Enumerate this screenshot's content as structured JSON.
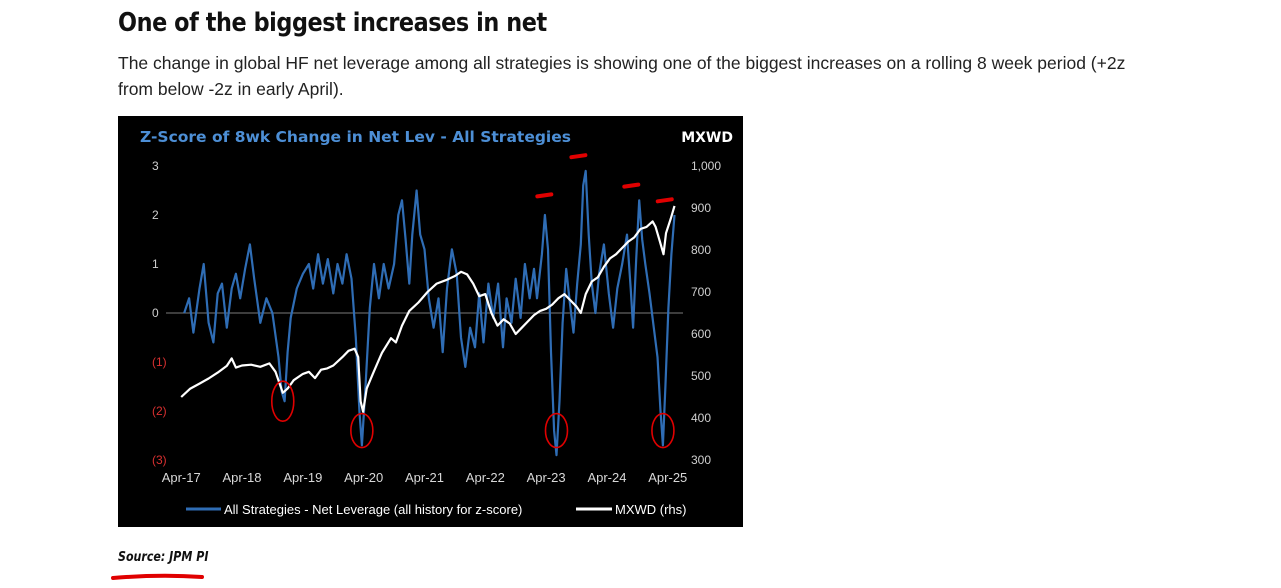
{
  "article": {
    "headline": "One of the biggest increases in net",
    "deck": "The change in global HF net leverage among all strategies is showing one of the biggest increases on a rolling 8 week period (+2z from below -2z in early April).",
    "source": "Source: JPM PI"
  },
  "colors": {
    "title_blue": "#4d8fd6",
    "zscore_series": "#2f6db5",
    "mxwd_series": "#ffffff",
    "annotation_red": "#e00000",
    "background": "#000000"
  },
  "chart_data": {
    "type": "line",
    "title": "Z-Score of 8wk Change in Net Lev - All Strategies",
    "right_axis_title": "MXWD",
    "left_axis": {
      "range": [
        -3,
        3
      ],
      "ticks": [
        "3",
        "2",
        "1",
        "0",
        "(1)",
        "(2)",
        "(3)"
      ],
      "tick_values": [
        3,
        2,
        1,
        0,
        -1,
        -2,
        -3
      ]
    },
    "right_axis": {
      "range": [
        300,
        1000
      ],
      "ticks": [
        "1,000",
        "900",
        "800",
        "700",
        "600",
        "500",
        "400",
        "300"
      ],
      "tick_values": [
        1000,
        900,
        800,
        700,
        600,
        500,
        400,
        300
      ]
    },
    "x_axis": {
      "range": [
        2017.0,
        2025.5
      ],
      "ticks": [
        "Apr-17",
        "Apr-18",
        "Apr-19",
        "Apr-20",
        "Apr-21",
        "Apr-22",
        "Apr-23",
        "Apr-24",
        "Apr-25"
      ],
      "tick_values": [
        2017.25,
        2018.25,
        2019.25,
        2020.25,
        2021.25,
        2022.25,
        2023.25,
        2024.25,
        2025.25
      ]
    },
    "series": [
      {
        "name": "All Strategies - Net Leverage (all history for z-score)",
        "axis": "left",
        "points": [
          [
            2017.3,
            0.0
          ],
          [
            2017.38,
            0.3
          ],
          [
            2017.45,
            -0.4
          ],
          [
            2017.55,
            0.5
          ],
          [
            2017.62,
            1.0
          ],
          [
            2017.7,
            -0.2
          ],
          [
            2017.78,
            -0.6
          ],
          [
            2017.85,
            0.4
          ],
          [
            2017.92,
            0.6
          ],
          [
            2018.0,
            -0.3
          ],
          [
            2018.08,
            0.5
          ],
          [
            2018.15,
            0.8
          ],
          [
            2018.22,
            0.3
          ],
          [
            2018.3,
            0.9
          ],
          [
            2018.38,
            1.4
          ],
          [
            2018.45,
            0.7
          ],
          [
            2018.55,
            -0.2
          ],
          [
            2018.65,
            0.3
          ],
          [
            2018.75,
            0.0
          ],
          [
            2018.85,
            -0.9
          ],
          [
            2018.9,
            -1.6
          ],
          [
            2018.95,
            -1.8
          ],
          [
            2019.0,
            -0.8
          ],
          [
            2019.05,
            -0.1
          ],
          [
            2019.15,
            0.5
          ],
          [
            2019.25,
            0.8
          ],
          [
            2019.35,
            1.0
          ],
          [
            2019.42,
            0.5
          ],
          [
            2019.5,
            1.2
          ],
          [
            2019.58,
            0.6
          ],
          [
            2019.66,
            1.1
          ],
          [
            2019.75,
            0.4
          ],
          [
            2019.82,
            1.0
          ],
          [
            2019.9,
            0.6
          ],
          [
            2019.97,
            1.2
          ],
          [
            2020.05,
            0.7
          ],
          [
            2020.12,
            -0.5
          ],
          [
            2020.18,
            -2.0
          ],
          [
            2020.22,
            -2.7
          ],
          [
            2020.28,
            -1.5
          ],
          [
            2020.35,
            0.1
          ],
          [
            2020.42,
            1.0
          ],
          [
            2020.5,
            0.3
          ],
          [
            2020.58,
            1.0
          ],
          [
            2020.66,
            0.5
          ],
          [
            2020.75,
            1.0
          ],
          [
            2020.82,
            2.0
          ],
          [
            2020.88,
            2.3
          ],
          [
            2020.94,
            1.5
          ],
          [
            2021.0,
            0.6
          ],
          [
            2021.05,
            1.6
          ],
          [
            2021.12,
            2.5
          ],
          [
            2021.18,
            1.6
          ],
          [
            2021.25,
            1.3
          ],
          [
            2021.32,
            0.3
          ],
          [
            2021.4,
            -0.3
          ],
          [
            2021.48,
            0.3
          ],
          [
            2021.55,
            -0.8
          ],
          [
            2021.62,
            0.5
          ],
          [
            2021.7,
            1.3
          ],
          [
            2021.78,
            0.8
          ],
          [
            2021.85,
            -0.5
          ],
          [
            2021.92,
            -1.1
          ],
          [
            2022.0,
            -0.3
          ],
          [
            2022.08,
            -0.7
          ],
          [
            2022.15,
            0.4
          ],
          [
            2022.22,
            -0.6
          ],
          [
            2022.3,
            0.6
          ],
          [
            2022.38,
            -0.1
          ],
          [
            2022.46,
            0.6
          ],
          [
            2022.54,
            -0.7
          ],
          [
            2022.6,
            0.3
          ],
          [
            2022.68,
            -0.2
          ],
          [
            2022.75,
            0.7
          ],
          [
            2022.83,
            -0.1
          ],
          [
            2022.9,
            1.0
          ],
          [
            2022.98,
            0.3
          ],
          [
            2023.05,
            0.9
          ],
          [
            2023.1,
            0.3
          ],
          [
            2023.18,
            1.2
          ],
          [
            2023.23,
            2.0
          ],
          [
            2023.28,
            1.3
          ],
          [
            2023.33,
            -0.8
          ],
          [
            2023.38,
            -2.4
          ],
          [
            2023.42,
            -2.9
          ],
          [
            2023.47,
            -1.8
          ],
          [
            2023.52,
            -0.2
          ],
          [
            2023.58,
            0.9
          ],
          [
            2023.64,
            0.2
          ],
          [
            2023.7,
            -0.4
          ],
          [
            2023.76,
            0.6
          ],
          [
            2023.82,
            1.4
          ],
          [
            2023.86,
            2.6
          ],
          [
            2023.9,
            2.9
          ],
          [
            2023.95,
            1.6
          ],
          [
            2024.0,
            0.6
          ],
          [
            2024.06,
            0.0
          ],
          [
            2024.12,
            0.8
          ],
          [
            2024.2,
            1.4
          ],
          [
            2024.28,
            0.4
          ],
          [
            2024.35,
            -0.3
          ],
          [
            2024.42,
            0.5
          ],
          [
            2024.5,
            1.0
          ],
          [
            2024.58,
            1.6
          ],
          [
            2024.64,
            0.5
          ],
          [
            2024.68,
            -0.3
          ],
          [
            2024.73,
            1.1
          ],
          [
            2024.78,
            2.3
          ],
          [
            2024.83,
            1.5
          ],
          [
            2024.88,
            1.0
          ],
          [
            2024.95,
            0.4
          ],
          [
            2025.02,
            -0.3
          ],
          [
            2025.08,
            -0.9
          ],
          [
            2025.13,
            -2.0
          ],
          [
            2025.17,
            -2.7
          ],
          [
            2025.21,
            -1.5
          ],
          [
            2025.26,
            0.1
          ],
          [
            2025.31,
            1.2
          ],
          [
            2025.36,
            2.0
          ]
        ]
      },
      {
        "name": "MXWD (rhs)",
        "axis": "right",
        "points": [
          [
            2017.25,
            450
          ],
          [
            2017.4,
            470
          ],
          [
            2017.55,
            482
          ],
          [
            2017.7,
            494
          ],
          [
            2017.85,
            508
          ],
          [
            2018.0,
            524
          ],
          [
            2018.08,
            542
          ],
          [
            2018.15,
            520
          ],
          [
            2018.25,
            525
          ],
          [
            2018.4,
            527
          ],
          [
            2018.55,
            522
          ],
          [
            2018.7,
            530
          ],
          [
            2018.8,
            510
          ],
          [
            2018.92,
            460
          ],
          [
            2019.0,
            470
          ],
          [
            2019.1,
            490
          ],
          [
            2019.25,
            505
          ],
          [
            2019.35,
            510
          ],
          [
            2019.45,
            495
          ],
          [
            2019.55,
            515
          ],
          [
            2019.65,
            518
          ],
          [
            2019.75,
            525
          ],
          [
            2019.9,
            545
          ],
          [
            2020.0,
            560
          ],
          [
            2020.1,
            565
          ],
          [
            2020.16,
            545
          ],
          [
            2020.2,
            440
          ],
          [
            2020.24,
            415
          ],
          [
            2020.3,
            470
          ],
          [
            2020.4,
            505
          ],
          [
            2020.55,
            555
          ],
          [
            2020.7,
            590
          ],
          [
            2020.78,
            580
          ],
          [
            2020.88,
            620
          ],
          [
            2021.0,
            655
          ],
          [
            2021.15,
            675
          ],
          [
            2021.3,
            700
          ],
          [
            2021.45,
            720
          ],
          [
            2021.6,
            728
          ],
          [
            2021.75,
            738
          ],
          [
            2021.85,
            748
          ],
          [
            2021.95,
            742
          ],
          [
            2022.05,
            720
          ],
          [
            2022.15,
            690
          ],
          [
            2022.25,
            695
          ],
          [
            2022.35,
            650
          ],
          [
            2022.45,
            620
          ],
          [
            2022.55,
            635
          ],
          [
            2022.65,
            625
          ],
          [
            2022.75,
            600
          ],
          [
            2022.85,
            615
          ],
          [
            2022.95,
            630
          ],
          [
            2023.05,
            645
          ],
          [
            2023.15,
            655
          ],
          [
            2023.25,
            660
          ],
          [
            2023.35,
            670
          ],
          [
            2023.45,
            685
          ],
          [
            2023.55,
            695
          ],
          [
            2023.65,
            680
          ],
          [
            2023.75,
            665
          ],
          [
            2023.82,
            650
          ],
          [
            2023.9,
            695
          ],
          [
            2024.0,
            725
          ],
          [
            2024.1,
            735
          ],
          [
            2024.2,
            760
          ],
          [
            2024.3,
            780
          ],
          [
            2024.4,
            790
          ],
          [
            2024.5,
            805
          ],
          [
            2024.6,
            820
          ],
          [
            2024.7,
            830
          ],
          [
            2024.8,
            850
          ],
          [
            2024.9,
            855
          ],
          [
            2025.0,
            868
          ],
          [
            2025.05,
            855
          ],
          [
            2025.12,
            820
          ],
          [
            2025.18,
            790
          ],
          [
            2025.22,
            840
          ],
          [
            2025.3,
            875
          ],
          [
            2025.36,
            905
          ]
        ]
      }
    ],
    "annotations": [
      {
        "type": "circle",
        "x": 2018.92,
        "z": -1.8
      },
      {
        "type": "circle",
        "x": 2020.22,
        "z": -2.4
      },
      {
        "type": "circle",
        "x": 2023.42,
        "z": -2.4
      },
      {
        "type": "circle",
        "x": 2025.17,
        "z": -2.4
      },
      {
        "type": "mark",
        "x": 2023.22,
        "z": 2.4
      },
      {
        "type": "mark",
        "x": 2023.78,
        "z": 3.2
      },
      {
        "type": "mark",
        "x": 2024.65,
        "z": 2.6
      },
      {
        "type": "mark",
        "x": 2025.2,
        "z": 2.3
      }
    ],
    "legend": {
      "position": "bottom",
      "items": [
        "All Strategies - Net Leverage (all history for z-score)",
        "MXWD (rhs)"
      ]
    }
  }
}
